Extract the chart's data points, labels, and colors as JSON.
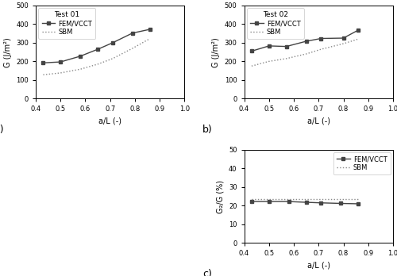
{
  "test01_x": [
    0.43,
    0.5,
    0.58,
    0.65,
    0.71,
    0.79,
    0.86
  ],
  "test01_fem": [
    192,
    197,
    228,
    265,
    300,
    352,
    372
  ],
  "test01_sbm": [
    128,
    138,
    158,
    185,
    215,
    270,
    322
  ],
  "test02_x": [
    0.43,
    0.5,
    0.57,
    0.65,
    0.71,
    0.8,
    0.86
  ],
  "test02_fem": [
    255,
    283,
    280,
    308,
    323,
    325,
    368
  ],
  "test02_sbm": [
    175,
    200,
    215,
    240,
    265,
    295,
    320
  ],
  "test03_x": [
    0.43,
    0.5,
    0.58,
    0.65,
    0.71,
    0.79,
    0.86
  ],
  "test03_fem": [
    22.2,
    22.2,
    22.2,
    21.8,
    21.5,
    21.2,
    21.0
  ],
  "test03_sbm": [
    23.5,
    23.5,
    23.5,
    23.5,
    23.5,
    23.5,
    23.5
  ],
  "color_fem": "#444444",
  "color_sbm": "#888888",
  "marker_fem": "s",
  "line_fem": "-",
  "line_sbm": ":",
  "xlabel": "a/L (-)",
  "ylabel_ab": "G (J/m²)",
  "ylabel_c": "G₂/G (%)",
  "title_a": "Test 01",
  "title_b": "Test 02",
  "label_fem": "FEM/VCCT",
  "label_sbm": "SBM",
  "xlim": [
    0.4,
    1.0
  ],
  "ylim_ab": [
    0,
    500
  ],
  "ylim_c": [
    0,
    50
  ],
  "xticks": [
    0.4,
    0.5,
    0.6,
    0.7,
    0.8,
    0.9,
    1.0
  ],
  "yticks_ab": [
    0,
    100,
    200,
    300,
    400,
    500
  ],
  "yticks_c": [
    0,
    10,
    20,
    30,
    40,
    50
  ]
}
